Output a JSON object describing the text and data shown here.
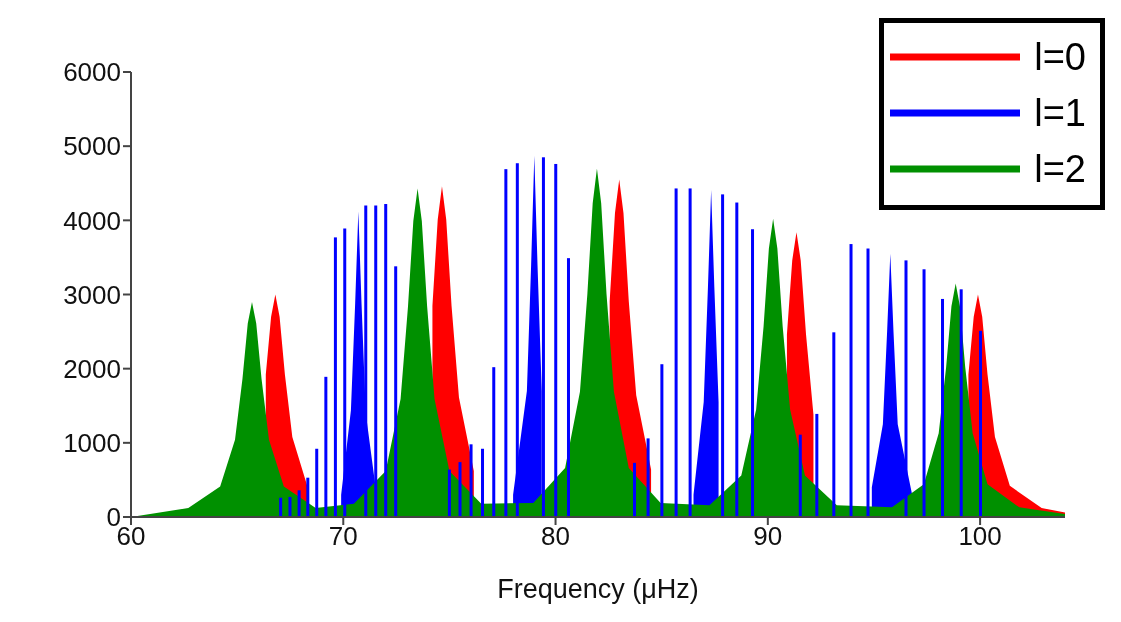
{
  "chart_data": {
    "type": "area",
    "xlabel": "Frequency (μHz)",
    "xlim": [
      60,
      104
    ],
    "xticks": [
      60,
      70,
      80,
      90,
      100
    ],
    "ylim": [
      0,
      6000
    ],
    "yticks": [
      0,
      1000,
      2000,
      3000,
      4000,
      5000,
      6000
    ],
    "legend": "top right",
    "series": [
      {
        "name": "l=0",
        "color": "#ff0000",
        "x": [
          66.35,
          66.6,
          66.8,
          67.0,
          67.25,
          67.6,
          68.3,
          69.8,
          71.65,
          73.15,
          73.85,
          74.2,
          74.45,
          74.65,
          74.85,
          75.1,
          75.45,
          76.15,
          77.65,
          80.0,
          81.5,
          82.2,
          82.55,
          82.8,
          83.0,
          83.2,
          83.45,
          83.8,
          84.5,
          86.0,
          88.35,
          89.85,
          90.55,
          90.9,
          91.15,
          91.35,
          91.55,
          91.8,
          92.15,
          92.85,
          94.35,
          96.9,
          98.4,
          99.1,
          99.45,
          99.7,
          99.9,
          100.1,
          100.35,
          100.7,
          101.4,
          102.9,
          104
        ],
        "values": [
          1920,
          2700,
          3000,
          2700,
          1920,
          1080,
          420,
          null,
          null,
          null,
          null,
          2850,
          4010,
          4460,
          4010,
          2850,
          1610,
          620,
          null,
          null,
          null,
          null,
          2910,
          4100,
          4550,
          4100,
          2910,
          1640,
          640,
          null,
          null,
          null,
          null,
          2460,
          3460,
          3840,
          3460,
          2460,
          1380,
          null,
          null,
          null,
          null,
          null,
          1920,
          2700,
          3000,
          2700,
          1920,
          1080,
          420,
          120,
          60
        ]
      },
      {
        "name": "l=1",
        "color": "#0000ff",
        "x": [
          69.9,
          70.36,
          70.56,
          70.71,
          70.86,
          71.06,
          71.5,
          72.2,
          78.0,
          78.65,
          78.85,
          79.0,
          79.15,
          79.35,
          80.0,
          86.5,
          86.98,
          87.18,
          87.33,
          87.48,
          87.68,
          88.2,
          94.9,
          95.42,
          95.62,
          95.77,
          95.92,
          96.12,
          96.8
        ],
        "values": [
          300,
          1440,
          2880,
          4120,
          2880,
          1400,
          450,
          null,
          300,
          1700,
          3400,
          4870,
          3400,
          1700,
          null,
          300,
          1550,
          3100,
          4410,
          3100,
          1550,
          null,
          400,
          1250,
          2500,
          3550,
          2500,
          1250,
          300
        ]
      },
      {
        "type": "bar",
        "color": "#0000ff",
        "x": [
          67.05,
          67.49,
          67.92,
          68.33,
          68.75,
          69.18,
          69.63,
          70.07,
          71.06,
          71.53,
          72.0,
          72.47,
          75.0,
          75.5,
          76.02,
          76.56,
          77.09,
          77.66,
          78.2,
          79.43,
          80.01,
          80.61,
          83.72,
          84.36,
          85.01,
          85.68,
          86.34,
          87.87,
          88.54,
          89.28,
          91.53,
          92.31,
          93.11,
          93.92,
          94.72,
          96.51,
          97.36,
          98.23,
          99.11,
          100.02
        ],
        "values": [
          260,
          270,
          360,
          530,
          920,
          1890,
          3770,
          3890,
          4200,
          4200,
          4220,
          3380,
          640,
          740,
          980,
          920,
          2020,
          4690,
          4770,
          4850,
          4760,
          3490,
          730,
          1060,
          2060,
          4430,
          4430,
          4350,
          4240,
          3880,
          1110,
          1390,
          2490,
          3680,
          3620,
          3460,
          3340,
          2940,
          3070,
          2510
        ]
      },
      {
        "name": "l=2",
        "color": "#009000",
        "x": [
          60,
          62.7,
          64.2,
          64.9,
          65.25,
          65.5,
          65.7,
          65.9,
          66.15,
          66.5,
          67.2,
          68.7,
          70.5,
          72.0,
          72.7,
          73.05,
          73.3,
          73.5,
          73.7,
          73.95,
          74.3,
          75.0,
          76.5,
          78.95,
          80.45,
          81.15,
          81.5,
          81.75,
          81.95,
          82.15,
          82.4,
          82.75,
          83.45,
          84.95,
          87.25,
          88.75,
          89.45,
          89.8,
          90.05,
          90.25,
          90.45,
          90.7,
          91.05,
          91.75,
          93.25,
          95.85,
          97.35,
          98.05,
          98.4,
          98.65,
          98.85,
          99.05,
          99.3,
          99.65,
          100.35,
          101.85,
          104
        ],
        "values": [
          0,
          120,
          410,
          1040,
          1860,
          2610,
          2900,
          2610,
          1860,
          1040,
          410,
          120,
          180,
          620,
          1590,
          2840,
          3990,
          4430,
          3990,
          2840,
          1590,
          620,
          180,
          190,
          660,
          1690,
          3010,
          4230,
          4700,
          4230,
          3010,
          1690,
          660,
          190,
          160,
          560,
          1450,
          2570,
          3620,
          4020,
          3620,
          2570,
          1450,
          560,
          160,
          130,
          440,
          1130,
          2020,
          2840,
          3150,
          2840,
          2020,
          1130,
          440,
          130,
          40
        ]
      }
    ]
  }
}
